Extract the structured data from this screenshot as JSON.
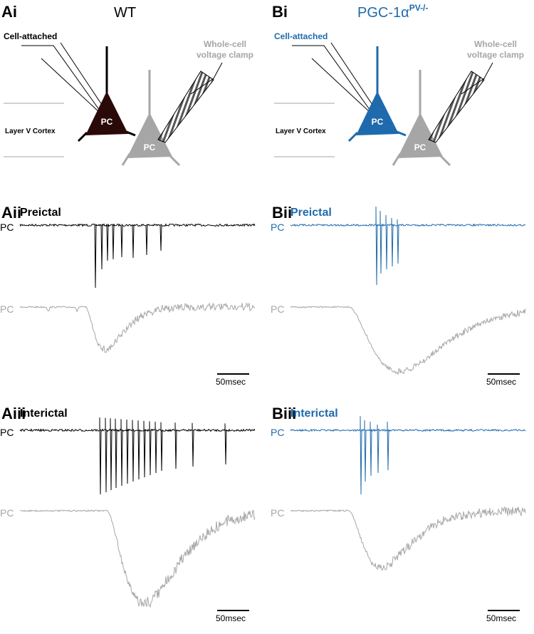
{
  "columns": [
    {
      "label": "Ai",
      "title": "WT",
      "schematic": {
        "cell_attached": "Cell-attached",
        "whole_cell": [
          "Whole-cell",
          "voltage clamp"
        ],
        "layer": "Layer V Cortex",
        "pc_top": "PC",
        "pc_bottom": "PC"
      },
      "recordings": [
        {
          "label": "Aii",
          "phase": "Preictal",
          "trace_top": "PC",
          "trace_bottom": "PC",
          "scale_bar": "50msec"
        },
        {
          "label": "Aiii",
          "phase": "Interictal",
          "trace_top": "PC",
          "trace_bottom": "PC",
          "scale_bar": "50msec"
        }
      ]
    },
    {
      "label": "Bi",
      "title": "PGC-1α",
      "title_superscript": "PV-/-",
      "schematic": {
        "cell_attached": "Cell-attached",
        "whole_cell": [
          "Whole-cell",
          "voltage clamp"
        ],
        "layer": "Layer V Cortex",
        "pc_top": "PC",
        "pc_bottom": "PC"
      },
      "recordings": [
        {
          "label": "Bii",
          "phase": "Preictal",
          "trace_top": "PC",
          "trace_bottom": "PC",
          "scale_bar": "50msec"
        },
        {
          "label": "Biii",
          "phase": "Interictal",
          "trace_top": "PC",
          "trace_bottom": "PC",
          "scale_bar": "50msec"
        }
      ]
    }
  ]
}
